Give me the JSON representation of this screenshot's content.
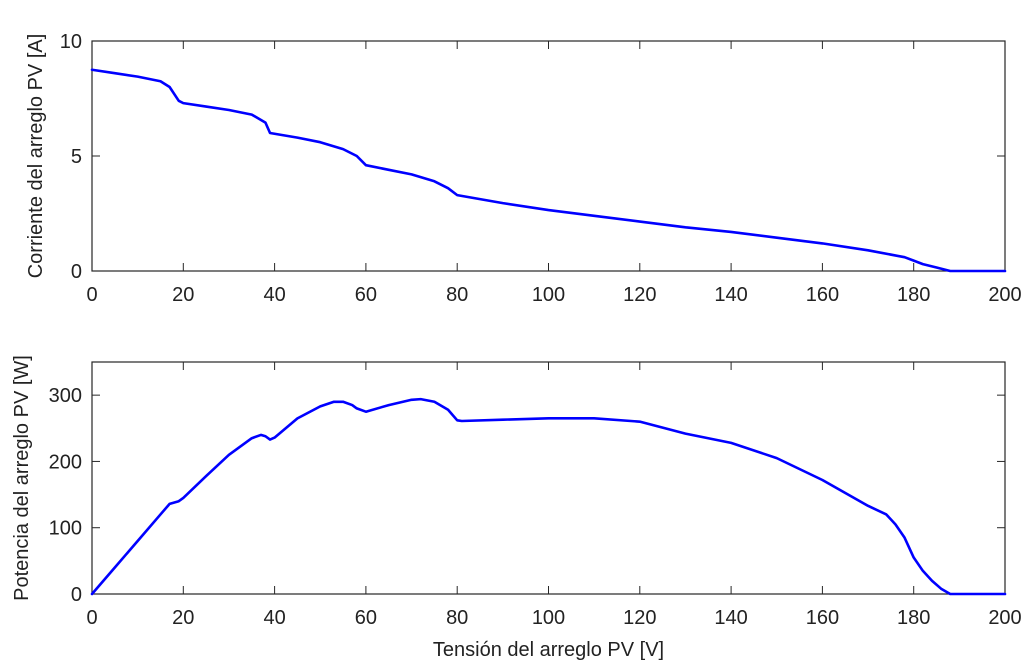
{
  "chart_data": [
    {
      "type": "line",
      "title": "",
      "xlabel": "",
      "ylabel": "Corriente del arreglo PV [A]",
      "xlim": [
        0,
        200
      ],
      "ylim": [
        0,
        10
      ],
      "xticks": [
        "0",
        "20",
        "40",
        "60",
        "80",
        "100",
        "120",
        "140",
        "160",
        "180",
        "200"
      ],
      "yticks": [
        "0",
        "5",
        "10"
      ],
      "grid": false,
      "line_color": "#0000ff",
      "series": [
        {
          "x": [
            0,
            5,
            10,
            15,
            17,
            19,
            20,
            25,
            30,
            35,
            38,
            39,
            45,
            50,
            55,
            58,
            60,
            65,
            70,
            75,
            78,
            80,
            90,
            100,
            110,
            120,
            130,
            140,
            150,
            160,
            170,
            178,
            180,
            182,
            185,
            188,
            200
          ],
          "y": [
            8.75,
            8.6,
            8.45,
            8.25,
            8.0,
            7.4,
            7.3,
            7.15,
            7.0,
            6.8,
            6.45,
            6.0,
            5.8,
            5.6,
            5.3,
            5.0,
            4.6,
            4.4,
            4.2,
            3.9,
            3.6,
            3.3,
            2.95,
            2.65,
            2.4,
            2.15,
            1.9,
            1.7,
            1.45,
            1.2,
            0.9,
            0.6,
            0.45,
            0.3,
            0.15,
            0.0,
            0.0
          ]
        }
      ]
    },
    {
      "type": "line",
      "title": "",
      "xlabel": "Tensión del arreglo PV [V]",
      "ylabel": "Potencia del arreglo PV [W]",
      "xlim": [
        0,
        200
      ],
      "ylim": [
        0,
        350
      ],
      "xticks": [
        "0",
        "20",
        "40",
        "60",
        "80",
        "100",
        "120",
        "140",
        "160",
        "180",
        "200"
      ],
      "yticks": [
        "0",
        "100",
        "200",
        "300"
      ],
      "grid": false,
      "line_color": "#0000ff",
      "series": [
        {
          "x": [
            0,
            5,
            10,
            15,
            17,
            19,
            20,
            25,
            30,
            35,
            37,
            38,
            39,
            40,
            45,
            50,
            53,
            55,
            57,
            58,
            60,
            65,
            70,
            72,
            75,
            78,
            80,
            81,
            90,
            100,
            110,
            120,
            130,
            140,
            150,
            160,
            170,
            174,
            176,
            178,
            180,
            182,
            184,
            186,
            188,
            200
          ],
          "y": [
            0,
            40,
            80,
            120,
            136,
            140,
            145,
            178,
            210,
            235,
            240,
            238,
            233,
            236,
            265,
            283,
            290,
            290,
            285,
            280,
            275,
            285,
            293,
            294,
            290,
            278,
            262,
            261,
            263,
            265,
            265,
            260,
            242,
            228,
            205,
            172,
            133,
            120,
            105,
            85,
            55,
            35,
            20,
            8,
            0,
            0
          ]
        }
      ]
    }
  ]
}
